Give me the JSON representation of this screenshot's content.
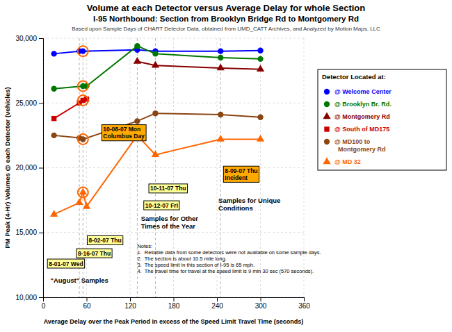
{
  "chart_data": {
    "type": "line",
    "title": "Volume at each Detector versus Average Delay for whole Section",
    "subtitle": [
      "I-95 Northbound: Section from Brooklyn Bridge Rd to Montgomery Rd",
      "Based upon Sample Days of CHART Detector Data, obtained from UMD_CATT Archives, and Analyzed by Motion Maps, LLC"
    ],
    "x_label": "Average Delay over the Peak Period in excess of the Speed Limit Travel Time (seconds)",
    "y_label": "PM Peak (4-Hr) Volumes @ each Detector (vehicles)",
    "xlim": [
      0,
      360
    ],
    "ylim": [
      10000,
      30000
    ],
    "xticks": [
      0,
      60,
      120,
      180,
      240,
      300,
      360
    ],
    "yticks": [
      {
        "value": 10000,
        "label": "10,000"
      },
      {
        "value": 15000,
        "label": "15,000"
      },
      {
        "value": 20000,
        "label": "20,000"
      },
      {
        "value": 25000,
        "label": "25,000"
      },
      {
        "value": 30000,
        "label": "30,000"
      }
    ],
    "grid": true,
    "legend": "right",
    "legend_title": "Detector Located at:",
    "series": [
      {
        "name": "@ Welcome Center",
        "color": "#0000ff",
        "marker": "circle",
        "x": [
          15,
          50,
          55,
          130,
          155,
          245,
          300
        ],
        "values": [
          28800,
          29000,
          29000,
          29100,
          29000,
          29000,
          29050
        ]
      },
      {
        "name": "@ Brooklyn Br. Rd.",
        "color": "#007700",
        "marker": "circle",
        "x": [
          15,
          55,
          60,
          130,
          155,
          245,
          300
        ],
        "values": [
          26100,
          26300,
          26300,
          29400,
          28800,
          28500,
          28400
        ]
      },
      {
        "name": "@ Montgomery Rd",
        "color": "#880000",
        "marker": "triangle",
        "x": [
          130,
          155,
          245,
          300
        ],
        "values": [
          28200,
          27900,
          27700,
          27600
        ]
      },
      {
        "name": "@ South of MD175",
        "color": "#cc0000",
        "marker": "square",
        "x": [
          15,
          50,
          55,
          60
        ],
        "values": [
          23800,
          25000,
          25200,
          25300
        ]
      },
      {
        "name": "@ MD100 to\n  Montgomery Rd",
        "color": "#8B4513",
        "marker": "circle",
        "x": [
          15,
          50,
          55,
          130,
          155,
          245,
          300
        ],
        "values": [
          22500,
          22300,
          22200,
          23600,
          24200,
          24100,
          23900
        ]
      },
      {
        "name": "@ MD 32",
        "color": "#ff6600",
        "marker": "triangle",
        "x": [
          15,
          50,
          55,
          60,
          130,
          155,
          245,
          300
        ],
        "values": [
          16400,
          17300,
          18100,
          17000,
          22500,
          21000,
          22200,
          22200
        ]
      }
    ],
    "highlight_points": {
      "x": [
        55,
        55,
        55,
        55,
        55
      ],
      "values": [
        29000,
        26300,
        25200,
        22200,
        18100
      ],
      "color": "#ff6600"
    },
    "vlines": [
      50,
      55,
      130,
      155,
      245
    ],
    "annotations": [
      {
        "text": "10-08-07 Mon\nColumbus Day",
        "x": 80,
        "y": 22700,
        "color": "#ffaa00"
      },
      {
        "text": "8-02-07 Thu",
        "x": 60,
        "y": 14400,
        "color": "#ffff99"
      },
      {
        "text": "8-16-07 Thu",
        "x": 45,
        "y": 13400,
        "color": "#ffff99"
      },
      {
        "text": "8-01-07 Wed",
        "x": 5,
        "y": 12600,
        "color": "#ffff99"
      },
      {
        "text": "10-11-07 Thu",
        "x": 145,
        "y": 18400,
        "color": "#ffff99"
      },
      {
        "text": "10-12-07 Fri",
        "x": 138,
        "y": 17100,
        "color": "#ffff99"
      },
      {
        "text": "8-09-07 Thu\nIncident",
        "x": 248,
        "y": 19500,
        "color": "#ffaa00"
      },
      {
        "text": "Samples for Other\nTimes of the Year",
        "x": 135,
        "y": 15800
      },
      {
        "text": "\"August\" Samples",
        "x": 10,
        "y": 11300
      },
      {
        "text": "Samples for Unique\nConditions",
        "x": 242,
        "y": 17200
      }
    ],
    "notes": {
      "lines": [
        "Notes:",
        "1.  Reliable data from some detectors were not available on some sample days.",
        "2.  The section is about 10.5 mile long.",
        "3.  The speed limit in this section of I-95 is 65 mph.",
        "4.  The travel time for travel at the speed limit is 9 min 30 sec (570 seconds)."
      ],
      "x": 130,
      "y": 14200
    }
  }
}
